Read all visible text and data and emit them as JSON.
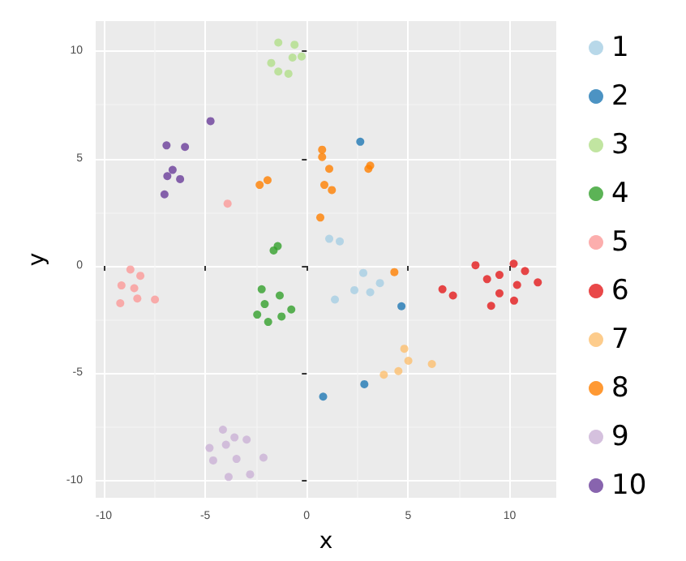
{
  "chart_data": {
    "type": "scatter",
    "xlabel": "x",
    "ylabel": "y",
    "xlim": [
      -10.4,
      12.3
    ],
    "ylim": [
      -10.8,
      11.4
    ],
    "xticks": [
      -10,
      -5,
      0,
      5,
      10
    ],
    "yticks": [
      -10,
      -5,
      0,
      5,
      10
    ],
    "grid": true,
    "legend": "right",
    "marker": "circle",
    "series": [
      {
        "name": "1",
        "color": "#a6cee3",
        "x": [
          1.11,
          1.63,
          2.79,
          2.35,
          3.61,
          3.13,
          1.39
        ],
        "values": [
          1.26,
          1.14,
          -0.33,
          -1.13,
          -0.8,
          -1.23,
          -1.57
        ]
      },
      {
        "name": "2",
        "color": "#1f78b4",
        "x": [
          2.64,
          4.67,
          2.84,
          0.81
        ],
        "values": [
          5.78,
          -1.88,
          -5.51,
          -6.09
        ]
      },
      {
        "name": "3",
        "color": "#b2df8a",
        "x": [
          -1.4,
          -0.6,
          -1.75,
          -0.7,
          -0.25,
          -1.4,
          -0.9
        ],
        "values": [
          10.4,
          10.3,
          9.45,
          9.7,
          9.75,
          9.05,
          8.95
        ]
      },
      {
        "name": "4",
        "color": "#33a02c",
        "x": [
          -1.63,
          -1.43,
          -2.22,
          -1.33,
          -2.07,
          -0.76,
          -2.44,
          -1.24,
          -1.9
        ],
        "values": [
          0.72,
          0.92,
          -1.09,
          -1.38,
          -1.78,
          -2.03,
          -2.27,
          -2.36,
          -2.61
        ]
      },
      {
        "name": "5",
        "color": "#fb9a99",
        "x": [
          -3.9,
          -8.69,
          -8.2,
          -9.13,
          -8.5,
          -8.35,
          -9.19,
          -7.48
        ],
        "values": [
          2.9,
          -0.17,
          -0.46,
          -0.91,
          -1.04,
          -1.52,
          -1.74,
          -1.57
        ]
      },
      {
        "name": "6",
        "color": "#e31a1c",
        "x": [
          8.32,
          10.2,
          10.76,
          9.5,
          8.89,
          6.69,
          7.21,
          10.37,
          11.39,
          9.5,
          10.22,
          9.09
        ],
        "values": [
          0.03,
          0.1,
          -0.24,
          -0.42,
          -0.62,
          -1.09,
          -1.38,
          -0.89,
          -0.77,
          -1.28,
          -1.62,
          -1.86
        ]
      },
      {
        "name": "7",
        "color": "#fdbf6f",
        "x": [
          4.81,
          5.01,
          6.17,
          4.52,
          3.8
        ],
        "values": [
          -3.86,
          -4.42,
          -4.57,
          -4.9,
          -5.07
        ]
      },
      {
        "name": "8",
        "color": "#ff7f00",
        "x": [
          0.76,
          0.76,
          1.11,
          3.13,
          3.04,
          0.87,
          1.24,
          0.67,
          -2.32,
          -1.93,
          4.32
        ],
        "values": [
          5.41,
          5.07,
          4.52,
          4.67,
          4.52,
          3.77,
          3.53,
          2.25,
          3.77,
          3.99,
          -0.29
        ]
      },
      {
        "name": "9",
        "color": "#cab2d6",
        "x": [
          -4.13,
          -3.56,
          -2.96,
          -4.79,
          -3.98,
          -2.13,
          -4.61,
          -3.46,
          -2.79,
          -3.85
        ],
        "values": [
          -7.63,
          -7.99,
          -8.09,
          -8.48,
          -8.33,
          -8.93,
          -9.06,
          -8.99,
          -9.71,
          -9.83
        ]
      },
      {
        "name": "10",
        "color": "#6a3d9a",
        "x": [
          -4.74,
          -6.91,
          -6.0,
          -6.61,
          -6.87,
          -6.24,
          -7.01
        ],
        "values": [
          6.74,
          5.61,
          5.54,
          4.47,
          4.18,
          4.04,
          3.33
        ]
      }
    ]
  }
}
